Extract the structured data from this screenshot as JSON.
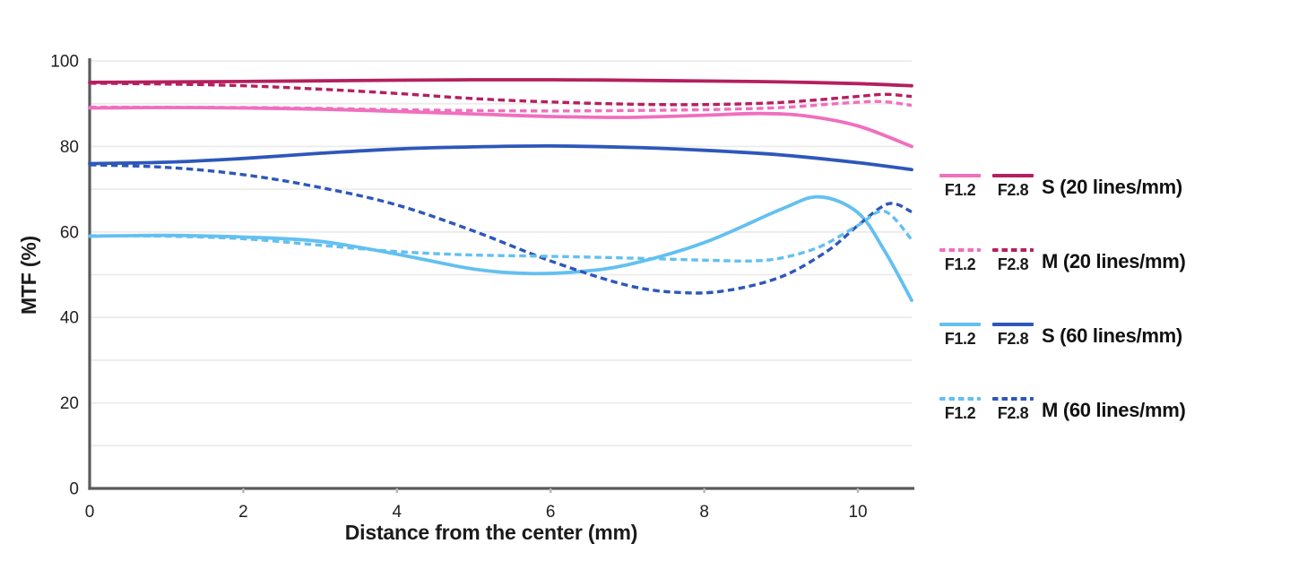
{
  "figure": {
    "background_color": "#ffffff",
    "description": "Lens MTF chart: contrast (%) vs image height, sagittal and meridional curves at F1.2 and F2.8 for 20 and 60 lines/mm"
  },
  "axes": {
    "x_title": "Distance from the center (mm)",
    "y_title": "MTF (%)",
    "x_tick_labels": [
      "0",
      "2",
      "4",
      "6",
      "8",
      "10"
    ],
    "x_tick_values": [
      0,
      2,
      4,
      6,
      8,
      10
    ],
    "y_tick_labels": [
      "0",
      "20",
      "40",
      "60",
      "80",
      "100"
    ],
    "y_tick_values": [
      0,
      20,
      40,
      60,
      80,
      100
    ],
    "grid_interval": 10,
    "axis_color": "#5b5b5d",
    "grid_color": "#ebebeb",
    "tick_mark_color": "#b8b8b8",
    "tick_label_color": "#231f20"
  },
  "chart_data": {
    "type": "line",
    "title": "",
    "xlabel": "Distance from the center (mm)",
    "ylabel": "MTF (%)",
    "xlim": [
      0,
      10.7
    ],
    "ylim": [
      0,
      100
    ],
    "grid": "horizontal-only",
    "legend_position": "right",
    "series": [
      {
        "id": "s20-f28",
        "name": "S (20 lines/mm) F2.8",
        "direction": "sagittal",
        "frequency_lines_per_mm": 20,
        "aperture": "F2.8",
        "color": "#b4205f",
        "line_style": "solid",
        "points": [
          [
            0,
            95
          ],
          [
            2,
            95.2
          ],
          [
            4,
            95.5
          ],
          [
            6,
            95.6
          ],
          [
            8,
            95.3
          ],
          [
            9,
            95.1
          ],
          [
            10,
            94.7
          ],
          [
            10.7,
            94.2
          ]
        ]
      },
      {
        "id": "s20-f12",
        "name": "S (20 lines/mm) F1.2",
        "direction": "sagittal",
        "frequency_lines_per_mm": 20,
        "aperture": "F1.2",
        "color": "#f06fbe",
        "line_style": "solid",
        "points": [
          [
            0,
            89
          ],
          [
            1,
            89.1
          ],
          [
            2,
            89
          ],
          [
            3,
            88.7
          ],
          [
            4,
            88.2
          ],
          [
            5,
            87.6
          ],
          [
            6,
            87
          ],
          [
            7,
            86.8
          ],
          [
            8,
            87.3
          ],
          [
            8.7,
            87.7
          ],
          [
            9.3,
            87.2
          ],
          [
            10,
            84.8
          ],
          [
            10.7,
            80
          ]
        ]
      },
      {
        "id": "s60-f28",
        "name": "S (60 lines/mm) F2.8",
        "direction": "sagittal",
        "frequency_lines_per_mm": 60,
        "aperture": "F2.8",
        "color": "#2e57ba",
        "line_style": "solid",
        "points": [
          [
            0,
            76
          ],
          [
            1,
            76.3
          ],
          [
            2,
            77.2
          ],
          [
            3,
            78.4
          ],
          [
            4,
            79.4
          ],
          [
            5,
            79.9
          ],
          [
            6,
            80.1
          ],
          [
            7,
            79.8
          ],
          [
            8,
            79.1
          ],
          [
            9,
            78
          ],
          [
            10,
            76.2
          ],
          [
            10.7,
            74.6
          ]
        ]
      },
      {
        "id": "s60-f12",
        "name": "S (60 lines/mm) F1.2",
        "direction": "sagittal",
        "frequency_lines_per_mm": 60,
        "aperture": "F1.2",
        "color": "#63c0f1",
        "line_style": "solid",
        "points": [
          [
            0,
            59
          ],
          [
            1,
            59.2
          ],
          [
            2,
            58.8
          ],
          [
            3,
            57.8
          ],
          [
            4,
            54.8
          ],
          [
            5,
            51.3
          ],
          [
            5.7,
            50.3
          ],
          [
            6.3,
            50.6
          ],
          [
            7,
            52.3
          ],
          [
            8,
            57.5
          ],
          [
            9,
            65.3
          ],
          [
            9.5,
            68.2
          ],
          [
            10,
            64.5
          ],
          [
            10.35,
            55.5
          ],
          [
            10.7,
            44
          ]
        ]
      },
      {
        "id": "m20-f28",
        "name": "M (20 lines/mm) F2.8",
        "direction": "meridional",
        "frequency_lines_per_mm": 20,
        "aperture": "F2.8",
        "color": "#b4205f",
        "line_style": "dashed",
        "points": [
          [
            0,
            94.8
          ],
          [
            1,
            94.6
          ],
          [
            2,
            94.2
          ],
          [
            3,
            93.4
          ],
          [
            4,
            92.4
          ],
          [
            5,
            91.2
          ],
          [
            6,
            90.4
          ],
          [
            7,
            89.9
          ],
          [
            8,
            89.8
          ],
          [
            9,
            90.3
          ],
          [
            10,
            91.7
          ],
          [
            10.35,
            92.2
          ],
          [
            10.7,
            91.7
          ]
        ]
      },
      {
        "id": "m20-f12",
        "name": "M (20 lines/mm) F1.2",
        "direction": "meridional",
        "frequency_lines_per_mm": 20,
        "aperture": "F1.2",
        "color": "#f06fbe",
        "line_style": "dashed",
        "points": [
          [
            0,
            89.2
          ],
          [
            2,
            89.1
          ],
          [
            3,
            88.9
          ],
          [
            4,
            88.6
          ],
          [
            5,
            88.4
          ],
          [
            6,
            88.3
          ],
          [
            7,
            88.4
          ],
          [
            8,
            88.6
          ],
          [
            9,
            89.1
          ],
          [
            9.8,
            90.1
          ],
          [
            10.3,
            90.5
          ],
          [
            10.7,
            89.6
          ]
        ]
      },
      {
        "id": "m60-f28",
        "name": "M (60 lines/mm) F2.8",
        "direction": "meridional",
        "frequency_lines_per_mm": 60,
        "aperture": "F2.8",
        "color": "#2e57ba",
        "line_style": "dashed",
        "points": [
          [
            0,
            75.7
          ],
          [
            1,
            75.1
          ],
          [
            2,
            73.4
          ],
          [
            3,
            70.4
          ],
          [
            4,
            66.3
          ],
          [
            5,
            60.2
          ],
          [
            6,
            53.2
          ],
          [
            7,
            47.5
          ],
          [
            7.7,
            45.8
          ],
          [
            8.3,
            46.3
          ],
          [
            9,
            49.5
          ],
          [
            9.6,
            55.5
          ],
          [
            10,
            61.5
          ],
          [
            10.4,
            66.6
          ],
          [
            10.7,
            64.7
          ]
        ]
      },
      {
        "id": "m60-f12",
        "name": "M (60 lines/mm) F1.2",
        "direction": "meridional",
        "frequency_lines_per_mm": 60,
        "aperture": "F1.2",
        "color": "#63c0f1",
        "line_style": "dashed",
        "points": [
          [
            0,
            59.1
          ],
          [
            1,
            59
          ],
          [
            2,
            58.4
          ],
          [
            3,
            56.9
          ],
          [
            4,
            55.4
          ],
          [
            5,
            54.6
          ],
          [
            6,
            54.3
          ],
          [
            7,
            53.9
          ],
          [
            8,
            53.4
          ],
          [
            8.6,
            53.2
          ],
          [
            9,
            53.9
          ],
          [
            9.5,
            56.5
          ],
          [
            10,
            61.5
          ],
          [
            10.35,
            64.8
          ],
          [
            10.7,
            58.2
          ]
        ]
      }
    ]
  },
  "legend": {
    "rows": [
      {
        "f1": "F1.2",
        "f2": "F2.8",
        "label": "S (20 lines/mm)",
        "f1_color": "#f06fbe",
        "f2_color": "#b4205f",
        "style": "solid"
      },
      {
        "f1": "F1.2",
        "f2": "F2.8",
        "label": "M (20 lines/mm)",
        "f1_color": "#f06fbe",
        "f2_color": "#b4205f",
        "style": "dashed"
      },
      {
        "f1": "F1.2",
        "f2": "F2.8",
        "label": "S (60 lines/mm)",
        "f1_color": "#63c0f1",
        "f2_color": "#2e57ba",
        "style": "solid"
      },
      {
        "f1": "F1.2",
        "f2": "F2.8",
        "label": "M (60 lines/mm)",
        "f1_color": "#63c0f1",
        "f2_color": "#2e57ba",
        "style": "dashed"
      }
    ]
  }
}
